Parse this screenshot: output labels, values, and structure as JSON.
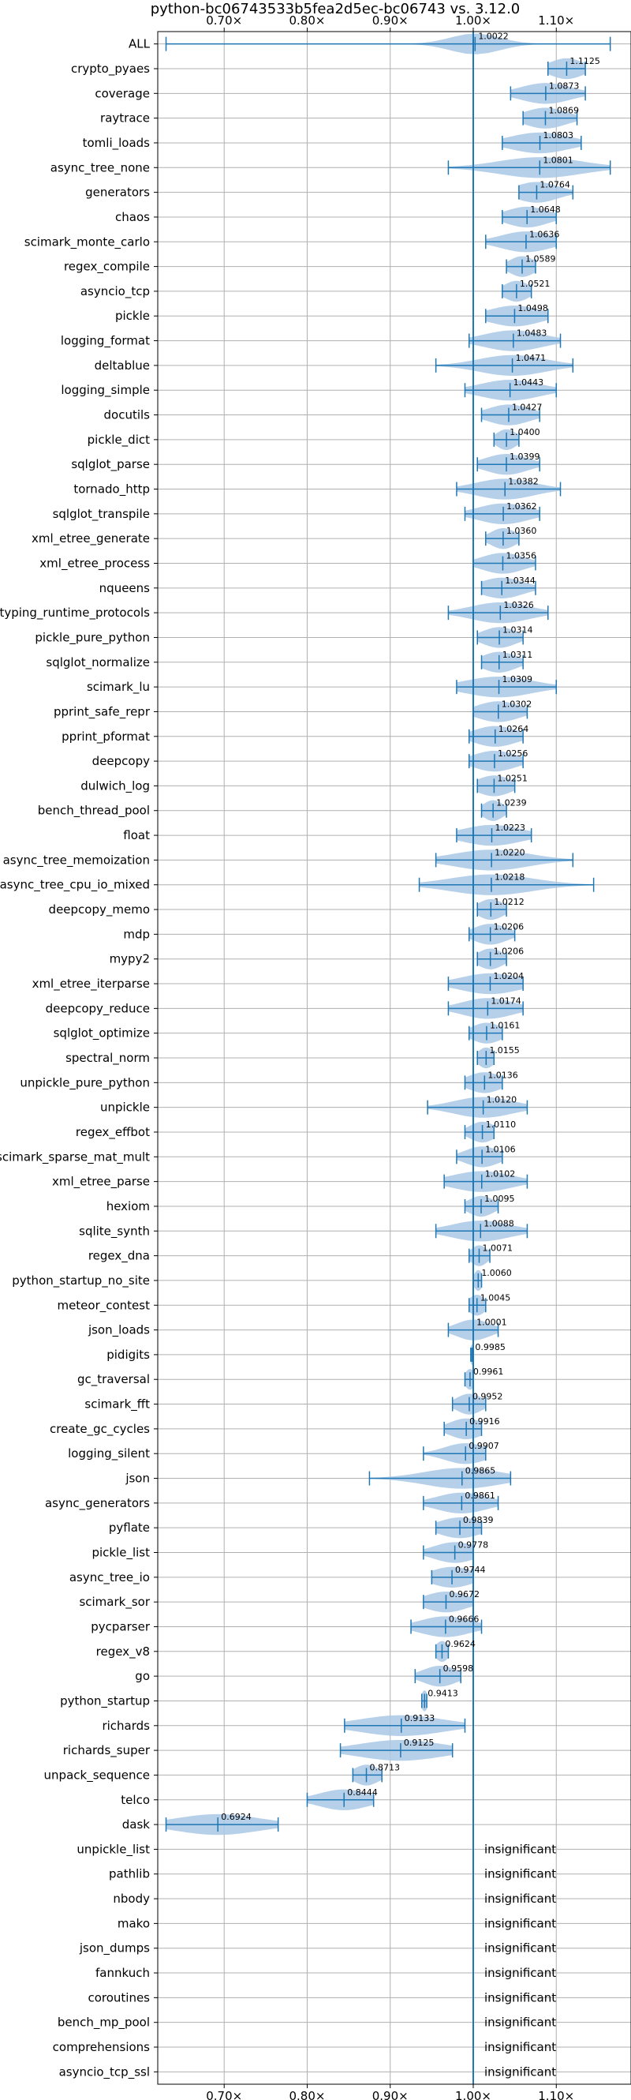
{
  "chart_data": {
    "type": "violin",
    "title": "python-bc06743533b5fea2d5ec-bc06743 vs. 3.12.0",
    "orientation": "horizontal",
    "xlim": [
      0.62,
      1.19
    ],
    "x_ticks": [
      0.7,
      0.8,
      0.9,
      1.0,
      1.1
    ],
    "x_tick_labels": [
      "0.70×",
      "0.80×",
      "0.90×",
      "1.00×",
      "1.10×"
    ],
    "reference_line": 1.0,
    "grid": true,
    "colors": {
      "violin": "#a9c8e6",
      "line": "#1f77b4",
      "grid": "#b0b0b0"
    },
    "insignificant_text": "insignificant",
    "benchmarks": [
      {
        "name": "ALL",
        "median": 1.0022,
        "label": "1.0022",
        "min": 0.63,
        "max": 1.165,
        "spread": 0.03
      },
      {
        "name": "crypto_pyaes",
        "median": 1.1125,
        "label": "1.1125",
        "min": 1.09,
        "max": 1.135,
        "spread": 0.02
      },
      {
        "name": "coverage",
        "median": 1.0873,
        "label": "1.0873",
        "min": 1.045,
        "max": 1.135,
        "spread": 0.03
      },
      {
        "name": "raytrace",
        "median": 1.0869,
        "label": "1.0869",
        "min": 1.06,
        "max": 1.125,
        "spread": 0.025
      },
      {
        "name": "tomli_loads",
        "median": 1.0803,
        "label": "1.0803",
        "min": 1.035,
        "max": 1.13,
        "spread": 0.035
      },
      {
        "name": "async_tree_none",
        "median": 1.0801,
        "label": "1.0801",
        "min": 0.97,
        "max": 1.165,
        "spread": 0.05
      },
      {
        "name": "generators",
        "median": 1.0764,
        "label": "1.0764",
        "min": 1.055,
        "max": 1.12,
        "spread": 0.025
      },
      {
        "name": "chaos",
        "median": 1.0648,
        "label": "1.0648",
        "min": 1.035,
        "max": 1.1,
        "spread": 0.025
      },
      {
        "name": "scimark_monte_carlo",
        "median": 1.0636,
        "label": "1.0636",
        "min": 1.015,
        "max": 1.1,
        "spread": 0.03
      },
      {
        "name": "regex_compile",
        "median": 1.0589,
        "label": "1.0589",
        "min": 1.04,
        "max": 1.075,
        "spread": 0.015
      },
      {
        "name": "asyncio_tcp",
        "median": 1.0521,
        "label": "1.0521",
        "min": 1.035,
        "max": 1.07,
        "spread": 0.015
      },
      {
        "name": "pickle",
        "median": 1.0498,
        "label": "1.0498",
        "min": 1.015,
        "max": 1.09,
        "spread": 0.03
      },
      {
        "name": "logging_format",
        "median": 1.0483,
        "label": "1.0483",
        "min": 0.995,
        "max": 1.105,
        "spread": 0.035
      },
      {
        "name": "deltablue",
        "median": 1.0471,
        "label": "1.0471",
        "min": 0.955,
        "max": 1.12,
        "spread": 0.04
      },
      {
        "name": "logging_simple",
        "median": 1.0443,
        "label": "1.0443",
        "min": 0.99,
        "max": 1.1,
        "spread": 0.035
      },
      {
        "name": "docutils",
        "median": 1.0427,
        "label": "1.0427",
        "min": 1.01,
        "max": 1.08,
        "spread": 0.025
      },
      {
        "name": "pickle_dict",
        "median": 1.04,
        "label": "1.0400",
        "min": 1.025,
        "max": 1.055,
        "spread": 0.012
      },
      {
        "name": "sqlglot_parse",
        "median": 1.0399,
        "label": "1.0399",
        "min": 1.005,
        "max": 1.08,
        "spread": 0.025
      },
      {
        "name": "tornado_http",
        "median": 1.0382,
        "label": "1.0382",
        "min": 0.98,
        "max": 1.105,
        "spread": 0.035
      },
      {
        "name": "sqlglot_transpile",
        "median": 1.0362,
        "label": "1.0362",
        "min": 0.99,
        "max": 1.08,
        "spread": 0.03
      },
      {
        "name": "xml_etree_generate",
        "median": 1.036,
        "label": "1.0360",
        "min": 1.015,
        "max": 1.055,
        "spread": 0.015
      },
      {
        "name": "xml_etree_process",
        "median": 1.0356,
        "label": "1.0356",
        "min": 1.0,
        "max": 1.075,
        "spread": 0.025
      },
      {
        "name": "nqueens",
        "median": 1.0344,
        "label": "1.0344",
        "min": 1.01,
        "max": 1.075,
        "spread": 0.025
      },
      {
        "name": "typing_runtime_protocols",
        "median": 1.0326,
        "label": "1.0326",
        "min": 0.97,
        "max": 1.09,
        "spread": 0.035
      },
      {
        "name": "pickle_pure_python",
        "median": 1.0314,
        "label": "1.0314",
        "min": 1.005,
        "max": 1.06,
        "spread": 0.02
      },
      {
        "name": "sqlglot_normalize",
        "median": 1.0311,
        "label": "1.0311",
        "min": 1.01,
        "max": 1.06,
        "spread": 0.02
      },
      {
        "name": "scimark_lu",
        "median": 1.0309,
        "label": "1.0309",
        "min": 0.98,
        "max": 1.1,
        "spread": 0.04
      },
      {
        "name": "pprint_safe_repr",
        "median": 1.0302,
        "label": "1.0302",
        "min": 1.0,
        "max": 1.065,
        "spread": 0.025
      },
      {
        "name": "pprint_pformat",
        "median": 1.0264,
        "label": "1.0264",
        "min": 0.995,
        "max": 1.06,
        "spread": 0.025
      },
      {
        "name": "deepcopy",
        "median": 1.0256,
        "label": "1.0256",
        "min": 0.995,
        "max": 1.06,
        "spread": 0.025
      },
      {
        "name": "dulwich_log",
        "median": 1.0251,
        "label": "1.0251",
        "min": 1.005,
        "max": 1.05,
        "spread": 0.02
      },
      {
        "name": "bench_thread_pool",
        "median": 1.0239,
        "label": "1.0239",
        "min": 1.01,
        "max": 1.04,
        "spread": 0.012
      },
      {
        "name": "float",
        "median": 1.0223,
        "label": "1.0223",
        "min": 0.98,
        "max": 1.07,
        "spread": 0.035
      },
      {
        "name": "async_tree_memoization",
        "median": 1.022,
        "label": "1.0220",
        "min": 0.955,
        "max": 1.12,
        "spread": 0.045
      },
      {
        "name": "async_tree_cpu_io_mixed",
        "median": 1.0218,
        "label": "1.0218",
        "min": 0.935,
        "max": 1.145,
        "spread": 0.05
      },
      {
        "name": "deepcopy_memo",
        "median": 1.0212,
        "label": "1.0212",
        "min": 1.005,
        "max": 1.04,
        "spread": 0.015
      },
      {
        "name": "mdp",
        "median": 1.0206,
        "label": "1.0206",
        "min": 0.995,
        "max": 1.05,
        "spread": 0.02
      },
      {
        "name": "mypy2",
        "median": 1.0206,
        "label": "1.0206",
        "min": 1.005,
        "max": 1.04,
        "spread": 0.015
      },
      {
        "name": "xml_etree_iterparse",
        "median": 1.0204,
        "label": "1.0204",
        "min": 0.97,
        "max": 1.06,
        "spread": 0.035
      },
      {
        "name": "deepcopy_reduce",
        "median": 1.0174,
        "label": "1.0174",
        "min": 0.97,
        "max": 1.06,
        "spread": 0.03
      },
      {
        "name": "sqlglot_optimize",
        "median": 1.0161,
        "label": "1.0161",
        "min": 0.995,
        "max": 1.035,
        "spread": 0.018
      },
      {
        "name": "spectral_norm",
        "median": 1.0155,
        "label": "1.0155",
        "min": 1.005,
        "max": 1.025,
        "spread": 0.01
      },
      {
        "name": "unpickle_pure_python",
        "median": 1.0136,
        "label": "1.0136",
        "min": 0.99,
        "max": 1.035,
        "spread": 0.02
      },
      {
        "name": "unpickle",
        "median": 1.012,
        "label": "1.0120",
        "min": 0.945,
        "max": 1.065,
        "spread": 0.035
      },
      {
        "name": "regex_effbot",
        "median": 1.011,
        "label": "1.0110",
        "min": 0.99,
        "max": 1.025,
        "spread": 0.015
      },
      {
        "name": "scimark_sparse_mat_mult",
        "median": 1.0106,
        "label": "1.0106",
        "min": 0.98,
        "max": 1.035,
        "spread": 0.02
      },
      {
        "name": "xml_etree_parse",
        "median": 1.0102,
        "label": "1.0102",
        "min": 0.965,
        "max": 1.065,
        "spread": 0.035
      },
      {
        "name": "hexiom",
        "median": 1.0095,
        "label": "1.0095",
        "min": 0.99,
        "max": 1.03,
        "spread": 0.015
      },
      {
        "name": "sqlite_synth",
        "median": 1.0088,
        "label": "1.0088",
        "min": 0.955,
        "max": 1.065,
        "spread": 0.035
      },
      {
        "name": "regex_dna",
        "median": 1.0071,
        "label": "1.0071",
        "min": 0.995,
        "max": 1.02,
        "spread": 0.01
      },
      {
        "name": "python_startup_no_site",
        "median": 1.006,
        "label": "1.0060",
        "min": 1.0,
        "max": 1.01,
        "spread": 0.005
      },
      {
        "name": "meteor_contest",
        "median": 1.0045,
        "label": "1.0045",
        "min": 0.995,
        "max": 1.015,
        "spread": 0.01
      },
      {
        "name": "json_loads",
        "median": 1.0001,
        "label": "1.0001",
        "min": 0.97,
        "max": 1.03,
        "spread": 0.02
      },
      {
        "name": "pidigits",
        "median": 0.9985,
        "label": "0.9985",
        "min": 0.997,
        "max": 1.0,
        "spread": 0.002
      },
      {
        "name": "gc_traversal",
        "median": 0.9961,
        "label": "0.9961",
        "min": 0.99,
        "max": 1.0,
        "spread": 0.006
      },
      {
        "name": "scimark_fft",
        "median": 0.9952,
        "label": "0.9952",
        "min": 0.975,
        "max": 1.015,
        "spread": 0.015
      },
      {
        "name": "create_gc_cycles",
        "median": 0.9916,
        "label": "0.9916",
        "min": 0.965,
        "max": 1.01,
        "spread": 0.02
      },
      {
        "name": "logging_silent",
        "median": 0.9907,
        "label": "0.9907",
        "min": 0.94,
        "max": 1.015,
        "spread": 0.025
      },
      {
        "name": "json",
        "median": 0.9865,
        "label": "0.9865",
        "min": 0.875,
        "max": 1.045,
        "spread": 0.045
      },
      {
        "name": "async_generators",
        "median": 0.9861,
        "label": "0.9861",
        "min": 0.94,
        "max": 1.03,
        "spread": 0.03
      },
      {
        "name": "pyflate",
        "median": 0.9839,
        "label": "0.9839",
        "min": 0.955,
        "max": 1.01,
        "spread": 0.025
      },
      {
        "name": "pickle_list",
        "median": 0.9778,
        "label": "0.9778",
        "min": 0.94,
        "max": 1.0,
        "spread": 0.025
      },
      {
        "name": "async_tree_io",
        "median": 0.9744,
        "label": "0.9744",
        "min": 0.95,
        "max": 1.0,
        "spread": 0.025
      },
      {
        "name": "scimark_sor",
        "median": 0.9672,
        "label": "0.9672",
        "min": 0.94,
        "max": 1.0,
        "spread": 0.025
      },
      {
        "name": "pycparser",
        "median": 0.9666,
        "label": "0.9666",
        "min": 0.925,
        "max": 1.01,
        "spread": 0.03
      },
      {
        "name": "regex_v8",
        "median": 0.9624,
        "label": "0.9624",
        "min": 0.955,
        "max": 0.97,
        "spread": 0.008
      },
      {
        "name": "go",
        "median": 0.9598,
        "label": "0.9598",
        "min": 0.93,
        "max": 0.985,
        "spread": 0.02
      },
      {
        "name": "python_startup",
        "median": 0.9413,
        "label": "0.9413",
        "min": 0.938,
        "max": 0.944,
        "spread": 0.004
      },
      {
        "name": "richards",
        "median": 0.9133,
        "label": "0.9133",
        "min": 0.845,
        "max": 0.99,
        "spread": 0.05
      },
      {
        "name": "richards_super",
        "median": 0.9125,
        "label": "0.9125",
        "min": 0.84,
        "max": 0.975,
        "spread": 0.05
      },
      {
        "name": "unpack_sequence",
        "median": 0.8713,
        "label": "0.8713",
        "min": 0.855,
        "max": 0.89,
        "spread": 0.015
      },
      {
        "name": "telco",
        "median": 0.8444,
        "label": "0.8444",
        "min": 0.8,
        "max": 0.88,
        "spread": 0.03
      },
      {
        "name": "dask",
        "median": 0.6924,
        "label": "0.6924",
        "min": 0.63,
        "max": 0.765,
        "spread": 0.05
      },
      {
        "name": "unpickle_list",
        "insignificant": true
      },
      {
        "name": "pathlib",
        "insignificant": true
      },
      {
        "name": "nbody",
        "insignificant": true
      },
      {
        "name": "mako",
        "insignificant": true
      },
      {
        "name": "json_dumps",
        "insignificant": true
      },
      {
        "name": "fannkuch",
        "insignificant": true
      },
      {
        "name": "coroutines",
        "insignificant": true
      },
      {
        "name": "bench_mp_pool",
        "insignificant": true
      },
      {
        "name": "comprehensions",
        "insignificant": true
      },
      {
        "name": "asyncio_tcp_ssl",
        "insignificant": true
      }
    ]
  }
}
